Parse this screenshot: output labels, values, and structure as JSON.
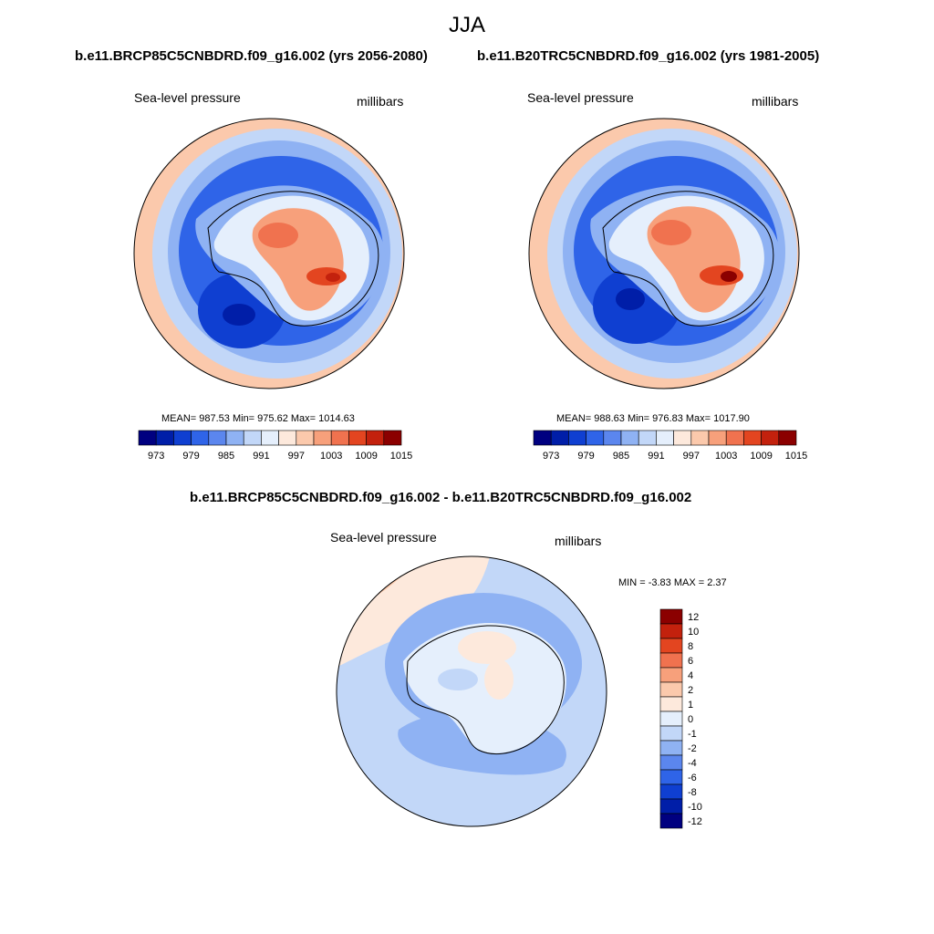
{
  "page": {
    "season": "JJA",
    "variable": "Sea-level pressure",
    "units": "millibars"
  },
  "palette": {
    "mean_colors": [
      "#000080",
      "#001ea8",
      "#0f3fd1",
      "#2f64e8",
      "#5b86ee",
      "#8fb2f3",
      "#c2d7f8",
      "#e5effc",
      "#fde9dc",
      "#fbc9ac",
      "#f7a07b",
      "#f0724f",
      "#e34520",
      "#c3210d",
      "#8b0000"
    ],
    "diff_colors": [
      "#000080",
      "#001ea8",
      "#0f3fd1",
      "#2f64e8",
      "#5b86ee",
      "#8fb2f3",
      "#c2d7f8",
      "#e5effc",
      "#fde9dc",
      "#fbc9ac",
      "#f7a07b",
      "#f0724f",
      "#e34520",
      "#c3210d",
      "#8b0000"
    ]
  },
  "chart_data": [
    {
      "type": "heatmap",
      "projection": "south-polar-stereographic",
      "title": "b.e11.BRCP85C5CNBDRD.f09_g16.002 (yrs 2056-2080)",
      "left_label": "Sea-level pressure",
      "right_label": "millibars",
      "stats_text": "MEAN= 987.53  Min= 975.62  Max= 1014.63",
      "mean": 987.53,
      "min": 975.62,
      "max": 1014.63,
      "colorbar_orientation": "horizontal",
      "levels": [
        973,
        976,
        979,
        982,
        985,
        988,
        991,
        994,
        997,
        1000,
        1003,
        1006,
        1009,
        1012,
        1015
      ],
      "tick_labels": [
        "973",
        "979",
        "985",
        "991",
        "997",
        "1003",
        "1009",
        "1015"
      ]
    },
    {
      "type": "heatmap",
      "projection": "south-polar-stereographic",
      "title": "b.e11.B20TRC5CNBDRD.f09_g16.002 (yrs 1981-2005)",
      "left_label": "Sea-level pressure",
      "right_label": "millibars",
      "stats_text": "MEAN= 988.63  Min= 976.83  Max= 1017.90",
      "mean": 988.63,
      "min": 976.83,
      "max": 1017.9,
      "colorbar_orientation": "horizontal",
      "levels": [
        973,
        976,
        979,
        982,
        985,
        988,
        991,
        994,
        997,
        1000,
        1003,
        1006,
        1009,
        1012,
        1015
      ],
      "tick_labels": [
        "973",
        "979",
        "985",
        "991",
        "997",
        "1003",
        "1009",
        "1015"
      ]
    },
    {
      "type": "heatmap",
      "projection": "south-polar-stereographic",
      "title": "b.e11.BRCP85C5CNBDRD.f09_g16.002 - b.e11.B20TRC5CNBDRD.f09_g16.002",
      "left_label": "Sea-level pressure",
      "right_label": "millibars",
      "stats_text": "MIN =  -3.83 MAX =   2.37",
      "min": -3.83,
      "max": 2.37,
      "colorbar_orientation": "vertical",
      "levels": [
        -12,
        -10,
        -8,
        -6,
        -4,
        -2,
        -1,
        0,
        1,
        2,
        4,
        6,
        8,
        10,
        12
      ],
      "tick_labels": [
        "12",
        "10",
        "8",
        "6",
        "4",
        "2",
        "1",
        "0",
        "-1",
        "-2",
        "-4",
        "-6",
        "-8",
        "-10",
        "-12"
      ]
    }
  ]
}
